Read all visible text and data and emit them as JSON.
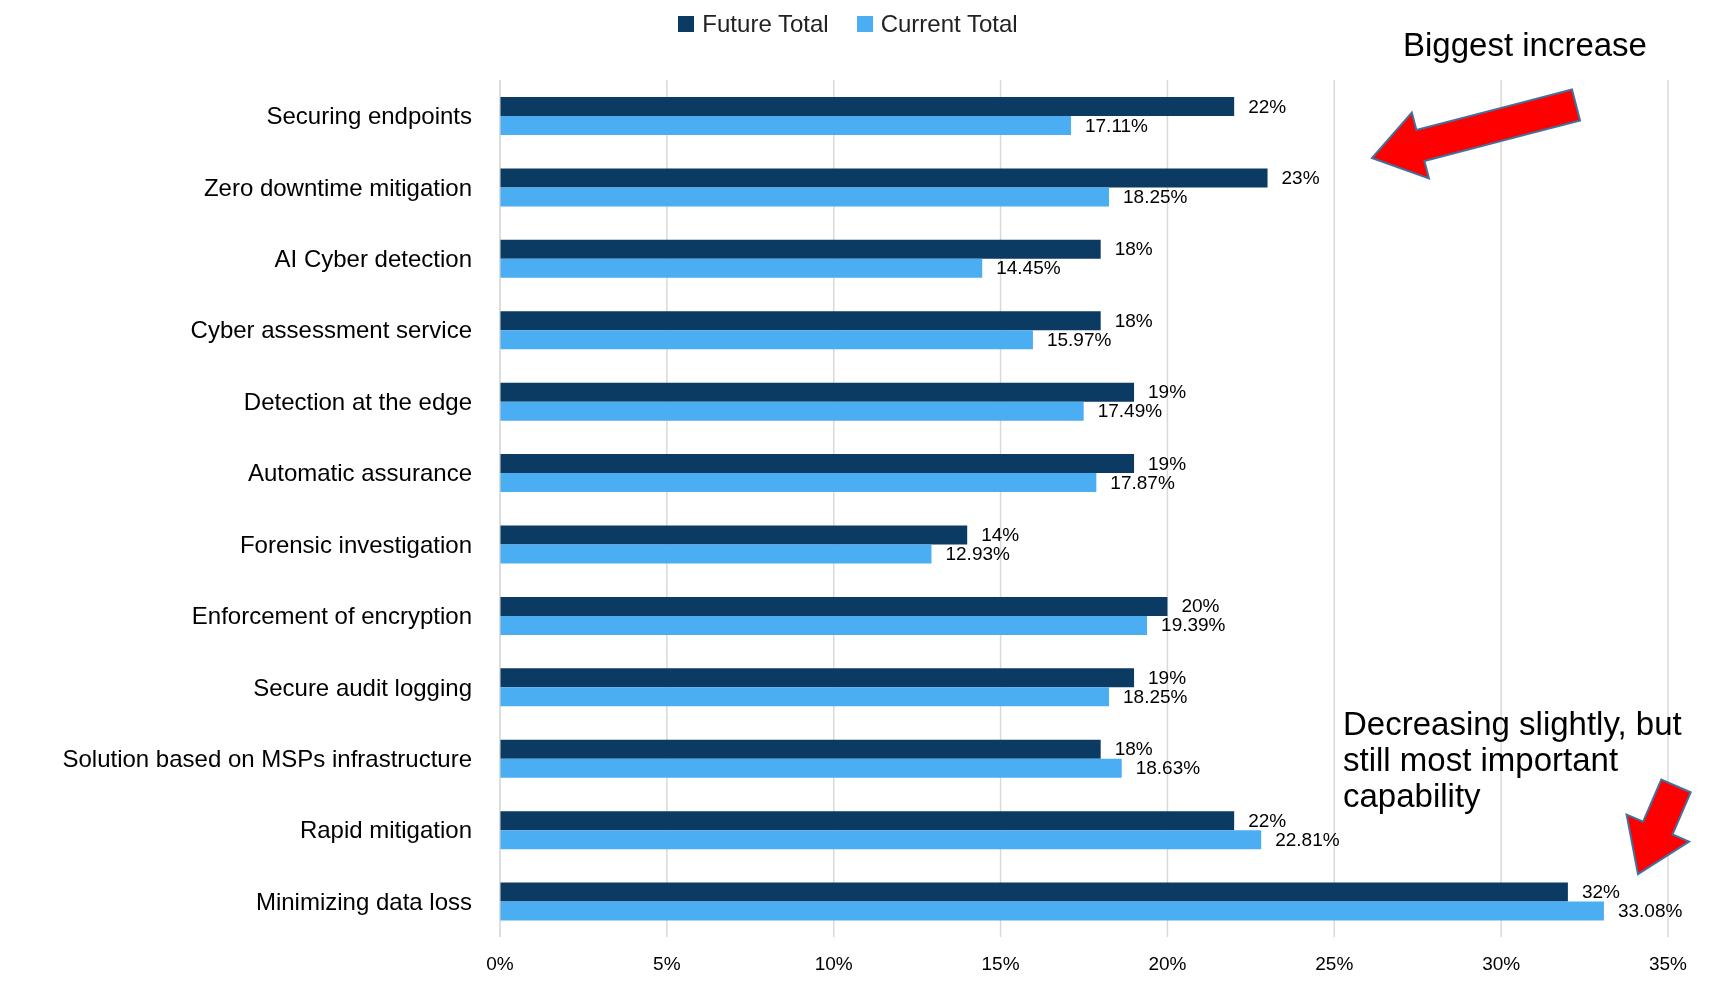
{
  "chart_data": {
    "type": "bar",
    "orientation": "horizontal",
    "categories": [
      "Securing endpoints",
      "Zero downtime mitigation",
      "AI Cyber detection",
      "Cyber assessment service",
      "Detection at the edge",
      "Automatic assurance",
      "Forensic investigation",
      "Enforcement of encryption",
      "Secure audit logging",
      "Solution based on MSPs infrastructure",
      "Rapid mitigation",
      "Minimizing data loss"
    ],
    "series": [
      {
        "name": "Future Total",
        "color": "#0b3a62",
        "values": [
          22,
          23,
          18,
          18,
          19,
          19,
          14,
          20,
          19,
          18,
          22,
          32
        ],
        "value_labels": [
          "22%",
          "23%",
          "18%",
          "18%",
          "19%",
          "19%",
          "14%",
          "20%",
          "19%",
          "18%",
          "22%",
          "32%"
        ]
      },
      {
        "name": "Current Total",
        "color": "#4badf2",
        "values": [
          17.11,
          18.25,
          14.45,
          15.97,
          17.49,
          17.87,
          12.93,
          19.39,
          18.25,
          18.63,
          22.81,
          33.08
        ],
        "value_labels": [
          "17.11%",
          "18.25%",
          "14.45%",
          "15.97%",
          "17.49%",
          "17.87%",
          "12.93%",
          "19.39%",
          "18.25%",
          "18.63%",
          "22.81%",
          "33.08%"
        ]
      }
    ],
    "xlim": [
      0,
      35
    ],
    "xticks": [
      {
        "value": 0,
        "label": "0%"
      },
      {
        "value": 5,
        "label": "5%"
      },
      {
        "value": 10,
        "label": "10%"
      },
      {
        "value": 15,
        "label": "15%"
      },
      {
        "value": 20,
        "label": "20%"
      },
      {
        "value": 25,
        "label": "25%"
      },
      {
        "value": 30,
        "label": "30%"
      },
      {
        "value": 35,
        "label": "35%"
      }
    ],
    "grid": "x",
    "legend": "top",
    "annotations": [
      "Biggest increase",
      "Decreasing slightly, but still most important capability"
    ]
  }
}
